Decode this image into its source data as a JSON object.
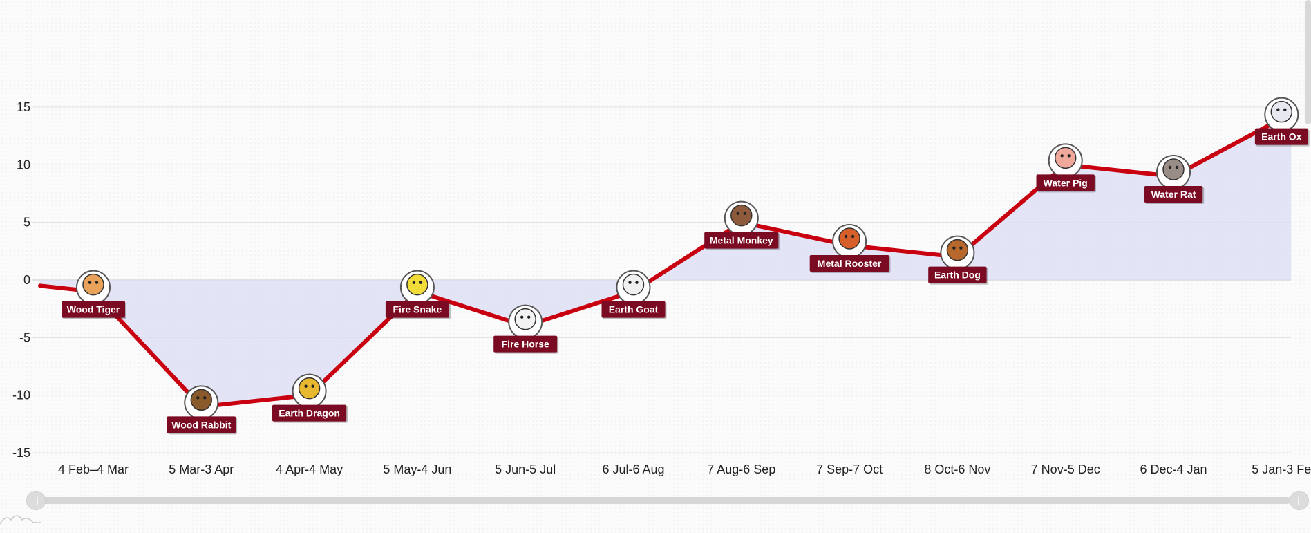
{
  "chart_data": {
    "type": "line",
    "categories": [
      "4 Feb–4 Mar",
      "5 Mar-3 Apr",
      "4 Apr-4 May",
      "5 May-4 Jun",
      "5 Jun-5 Jul",
      "6 Jul-6 Aug",
      "7 Aug-6 Sep",
      "7 Sep-7 Oct",
      "8 Oct-6 Nov",
      "7 Nov-5 Dec",
      "6 Dec-4 Jan",
      "5 Jan-3 Fe"
    ],
    "values": [
      -1,
      -11,
      -10,
      -1,
      -4,
      -1,
      5,
      3,
      2,
      10,
      9,
      14
    ],
    "start_value": -0.5,
    "point_labels": [
      "Wood Tiger",
      "Wood Rabbit",
      "Earth Dragon",
      "Fire Snake",
      "Fire Horse",
      "Earth Goat",
      "Metal Monkey",
      "Metal Rooster",
      "Earth Dog",
      "Water Pig",
      "Water Rat",
      "Earth Ox"
    ],
    "point_icons": [
      "tiger-icon",
      "rabbit-icon",
      "dragon-icon",
      "snake-icon",
      "horse-icon",
      "goat-icon",
      "monkey-icon",
      "rooster-icon",
      "dog-icon",
      "pig-icon",
      "rat-icon",
      "ox-icon"
    ],
    "icon_colors": [
      "#e9a25a",
      "#8b5a2b",
      "#e8b830",
      "#f2dc3a",
      "#f2f2f2",
      "#f0f0f0",
      "#8d5b3c",
      "#d7602a",
      "#b8682c",
      "#f0a89a",
      "#9a8d88",
      "#e8e8f0"
    ],
    "y_ticks": [
      "15",
      "10",
      "5",
      "0",
      "-5",
      "-10",
      "-15"
    ],
    "ylim": [
      -15,
      15
    ],
    "xlabel": "",
    "ylabel": "",
    "title": "",
    "grid": true,
    "line_color": "#c8000f",
    "fill_color": "#dcdcf5",
    "label_bg_color": "#7a0b22",
    "label_text_color": "#ffffff"
  },
  "scrollbar": {
    "track_color": "#d6d6d6"
  }
}
